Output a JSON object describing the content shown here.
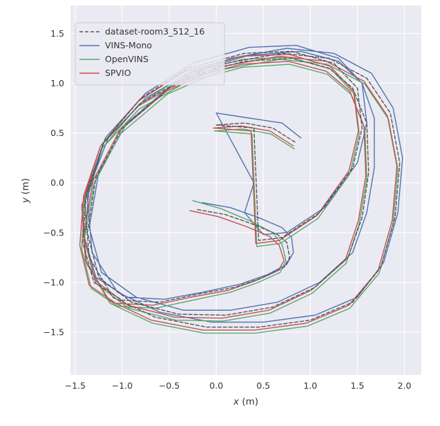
{
  "chart_data": {
    "type": "line",
    "title": "",
    "xlabel_var": "x",
    "xlabel_unit": "(m)",
    "ylabel_var": "y",
    "ylabel_unit": "(m)",
    "xlim": [
      -1.55,
      2.18
    ],
    "ylim": [
      -1.93,
      1.78
    ],
    "xticks": [
      -1.5,
      -1.0,
      -0.5,
      0.0,
      0.5,
      1.0,
      1.5,
      2.0
    ],
    "xtick_labels": [
      "−1.5",
      "−1.0",
      "−0.5",
      "0.0",
      "0.5",
      "1.0",
      "1.5",
      "2.0"
    ],
    "yticks": [
      1.5,
      1.0,
      0.5,
      0.0,
      -0.5,
      -1.0,
      -1.5
    ],
    "ytick_labels": [
      "1.5",
      "1.0",
      "0.5",
      "0.0",
      "−0.5",
      "−1.0",
      "−1.5"
    ],
    "grid": true,
    "legend_position": "upper-left",
    "colors": {
      "background": "#eaeaf2",
      "grid": "#ffffff",
      "groundtruth": "#555555",
      "vins_mono": "#4c72b0",
      "openvins": "#55a868",
      "spvio": "#c44e52"
    },
    "series": [
      {
        "name": "dataset-room3_512_16",
        "color": "#555555",
        "style": "dashed",
        "x": [
          -0.2,
          0.1,
          0.4,
          0.65,
          0.75,
          0.78,
          0.72,
          0.5,
          0.2,
          -0.2,
          -0.6,
          -1.0,
          -1.3,
          -1.42,
          -1.38,
          -1.2,
          -0.8,
          -0.3,
          0.3,
          0.8,
          1.2,
          1.45,
          1.6,
          1.62,
          1.55,
          1.4,
          1.05,
          0.6,
          0.1,
          -0.4,
          -0.9,
          -1.25,
          -1.37,
          -1.28,
          -1.0,
          -0.5,
          0.1,
          0.7,
          1.2,
          1.6,
          1.85,
          1.95,
          1.9,
          1.75,
          1.45,
          1.0,
          0.45,
          -0.1,
          -0.65,
          -1.1,
          -1.35,
          -1.4,
          -1.2,
          -0.8,
          -0.3,
          0.3,
          0.8,
          1.25,
          1.5,
          1.55,
          1.45,
          1.1,
          0.7,
          0.45,
          0.4,
          0.0,
          0.3,
          0.6,
          0.85
        ],
        "y": [
          -0.27,
          -0.32,
          -0.42,
          -0.52,
          -0.6,
          -0.75,
          -0.85,
          -0.95,
          -1.05,
          -1.12,
          -1.2,
          -1.18,
          -1.0,
          -0.6,
          -0.1,
          0.4,
          0.8,
          1.07,
          1.22,
          1.25,
          1.15,
          0.95,
          0.6,
          0.1,
          -0.35,
          -0.75,
          -1.05,
          -1.25,
          -1.33,
          -1.32,
          -1.2,
          -0.95,
          -0.5,
          0.05,
          0.55,
          0.95,
          1.2,
          1.3,
          1.25,
          1.05,
          0.7,
          0.2,
          -0.35,
          -0.85,
          -1.2,
          -1.38,
          -1.45,
          -1.45,
          -1.35,
          -1.15,
          -0.75,
          -0.2,
          0.4,
          0.85,
          1.15,
          1.3,
          1.32,
          1.2,
          0.95,
          0.55,
          0.15,
          -0.3,
          -0.55,
          -0.58,
          0.55,
          0.58,
          0.6,
          0.55,
          0.4
        ]
      },
      {
        "name": "VINS-Mono",
        "color": "#4c72b0",
        "style": "solid",
        "x": [
          -0.15,
          0.15,
          0.45,
          0.7,
          0.8,
          0.82,
          0.75,
          0.55,
          0.25,
          -0.15,
          -0.55,
          -0.95,
          -1.28,
          -1.4,
          -1.35,
          -1.15,
          -0.75,
          -0.25,
          0.35,
          0.9,
          1.3,
          1.55,
          1.68,
          1.68,
          1.6,
          1.45,
          1.1,
          0.65,
          0.15,
          -0.35,
          -0.85,
          -1.22,
          -1.35,
          -1.25,
          -0.95,
          -0.45,
          0.15,
          0.75,
          1.25,
          1.65,
          1.88,
          1.98,
          1.93,
          1.78,
          1.5,
          1.05,
          0.5,
          -0.05,
          -0.6,
          -1.05,
          -1.32,
          -1.37,
          -1.18,
          -0.75,
          -0.25,
          0.35,
          0.85,
          1.3,
          1.55,
          1.6,
          1.5,
          1.15,
          0.75,
          0.5,
          0.3,
          0.4,
          0.0,
          0.35,
          0.7,
          0.9
        ],
        "y": [
          -0.2,
          -0.25,
          -0.35,
          -0.45,
          -0.55,
          -0.7,
          -0.82,
          -0.92,
          -1.02,
          -1.1,
          -1.17,
          -1.15,
          -0.95,
          -0.55,
          -0.05,
          0.45,
          0.85,
          1.12,
          1.28,
          1.32,
          1.22,
          1.0,
          0.65,
          0.15,
          -0.3,
          -0.7,
          -1.0,
          -1.2,
          -1.28,
          -1.28,
          -1.15,
          -0.9,
          -0.45,
          0.1,
          0.6,
          1.0,
          1.25,
          1.35,
          1.3,
          1.1,
          0.75,
          0.25,
          -0.3,
          -0.8,
          -1.15,
          -1.33,
          -1.4,
          -1.4,
          -1.3,
          -1.1,
          -0.7,
          -0.15,
          0.45,
          0.9,
          1.2,
          1.36,
          1.38,
          1.25,
          1.0,
          0.6,
          0.2,
          -0.25,
          -0.5,
          -0.52,
          -0.3,
          0.0,
          0.7,
          0.65,
          0.6,
          0.45
        ]
      },
      {
        "name": "OpenVINS",
        "color": "#55a868",
        "style": "solid",
        "x": [
          -0.25,
          0.05,
          0.35,
          0.6,
          0.7,
          0.74,
          0.68,
          0.45,
          0.15,
          -0.25,
          -0.65,
          -1.05,
          -1.33,
          -1.43,
          -1.4,
          -1.22,
          -0.82,
          -0.32,
          0.28,
          0.78,
          1.18,
          1.43,
          1.58,
          1.6,
          1.52,
          1.38,
          1.02,
          0.57,
          0.07,
          -0.43,
          -0.93,
          -1.28,
          -1.4,
          -1.3,
          -1.02,
          -0.52,
          0.08,
          0.68,
          1.18,
          1.58,
          1.83,
          1.93,
          1.88,
          1.73,
          1.42,
          0.97,
          0.42,
          -0.13,
          -0.68,
          -1.13,
          -1.38,
          -1.42,
          -1.22,
          -0.82,
          -0.32,
          0.28,
          0.78,
          1.22,
          1.47,
          1.52,
          1.42,
          1.08,
          0.68,
          0.43,
          0.38,
          -0.02,
          0.28,
          0.58,
          0.83
        ],
        "y": [
          -0.18,
          -0.26,
          -0.38,
          -0.5,
          -0.62,
          -0.78,
          -0.9,
          -1.0,
          -1.1,
          -1.18,
          -1.26,
          -1.24,
          -1.06,
          -0.66,
          -0.16,
          0.34,
          0.74,
          1.01,
          1.16,
          1.19,
          1.09,
          0.89,
          0.54,
          0.04,
          -0.41,
          -0.81,
          -1.11,
          -1.31,
          -1.39,
          -1.38,
          -1.26,
          -1.01,
          -0.56,
          -0.01,
          0.49,
          0.89,
          1.14,
          1.24,
          1.19,
          0.99,
          0.64,
          0.14,
          -0.41,
          -0.91,
          -1.26,
          -1.44,
          -1.51,
          -1.51,
          -1.41,
          -1.21,
          -0.81,
          -0.26,
          0.34,
          0.79,
          1.09,
          1.24,
          1.26,
          1.14,
          0.89,
          0.49,
          0.09,
          -0.36,
          -0.61,
          -0.64,
          0.49,
          0.52,
          0.54,
          0.49,
          0.34
        ]
      },
      {
        "name": "SPVIO",
        "color": "#c44e52",
        "style": "solid",
        "x": [
          -0.28,
          0.02,
          0.32,
          0.57,
          0.67,
          0.72,
          0.66,
          0.43,
          0.13,
          -0.27,
          -0.67,
          -1.07,
          -1.35,
          -1.45,
          -1.41,
          -1.23,
          -0.83,
          -0.33,
          0.27,
          0.77,
          1.17,
          1.42,
          1.57,
          1.59,
          1.51,
          1.37,
          1.01,
          0.56,
          0.06,
          -0.44,
          -0.94,
          -1.29,
          -1.41,
          -1.31,
          -1.03,
          -0.53,
          0.07,
          0.67,
          1.17,
          1.57,
          1.82,
          1.92,
          1.87,
          1.72,
          1.41,
          0.96,
          0.41,
          -0.14,
          -0.69,
          -1.14,
          -1.39,
          -1.43,
          -1.23,
          -0.83,
          -0.33,
          0.27,
          0.77,
          1.21,
          1.46,
          1.51,
          1.41,
          1.07,
          0.67,
          0.42,
          0.37,
          -0.03,
          0.27,
          0.57,
          0.82
        ],
        "y": [
          -0.28,
          -0.34,
          -0.44,
          -0.54,
          -0.63,
          -0.78,
          -0.88,
          -0.98,
          -1.08,
          -1.15,
          -1.23,
          -1.21,
          -1.03,
          -0.63,
          -0.13,
          0.37,
          0.77,
          1.04,
          1.19,
          1.22,
          1.12,
          0.92,
          0.57,
          0.07,
          -0.38,
          -0.78,
          -1.08,
          -1.28,
          -1.36,
          -1.35,
          -1.23,
          -0.98,
          -0.53,
          0.02,
          0.52,
          0.92,
          1.17,
          1.27,
          1.22,
          1.02,
          0.67,
          0.17,
          -0.38,
          -0.88,
          -1.23,
          -1.41,
          -1.48,
          -1.48,
          -1.38,
          -1.18,
          -0.78,
          -0.23,
          0.37,
          0.82,
          1.12,
          1.27,
          1.29,
          1.17,
          0.92,
          0.52,
          0.12,
          -0.33,
          -0.58,
          -0.61,
          0.52,
          0.55,
          0.57,
          0.52,
          0.37
        ]
      }
    ]
  }
}
